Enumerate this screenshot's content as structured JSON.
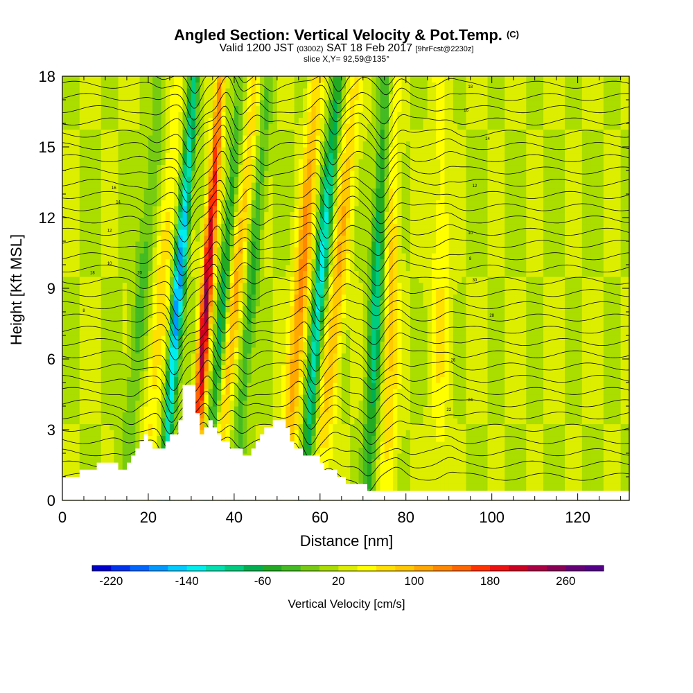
{
  "header": {
    "title": "Angled Section: Vertical Velocity & Pot.Temp.",
    "title_unit": "(C)",
    "valid_prefix": "Valid 1200 JST",
    "valid_utc": "(0300Z)",
    "valid_date": "SAT 18 Feb 2017",
    "forecast": "[9hrFcst@2230z]",
    "slice": "slice X,Y= 92,59@135°"
  },
  "chart_data": {
    "type": "heatmap",
    "title": "Angled Section: Vertical Velocity & Pot.Temp. (C)",
    "xlabel": "Distance [nm]",
    "ylabel": "Height [Kft MSL]",
    "xlim": [
      0,
      132
    ],
    "ylim": [
      0,
      18
    ],
    "x_ticks": [
      0,
      20,
      40,
      60,
      80,
      100,
      120
    ],
    "y_ticks": [
      0,
      3,
      6,
      9,
      12,
      15,
      18
    ],
    "colorbar": {
      "label": "Vertical Velocity [cm/s]",
      "tick_labels": [
        "-220",
        "-140",
        "-60",
        "20",
        "100",
        "180",
        "260"
      ],
      "tick_values": [
        -220,
        -140,
        -60,
        20,
        100,
        180,
        260
      ],
      "range": [
        -240,
        300
      ],
      "colors": [
        "#0000cc",
        "#0033ee",
        "#0066ff",
        "#0099ff",
        "#00ccff",
        "#00eeee",
        "#00e0b0",
        "#00cc80",
        "#00b050",
        "#22aa22",
        "#44bb22",
        "#77cc11",
        "#aadd00",
        "#ddee00",
        "#ffff00",
        "#ffe000",
        "#ffc800",
        "#ffa800",
        "#ff8800",
        "#ff6600",
        "#ff3300",
        "#ee1111",
        "#cc0022",
        "#aa0044",
        "#880055",
        "#660077",
        "#550088"
      ]
    },
    "updraft_bands": [
      {
        "x_base": 19,
        "amp": 60,
        "width": 1.8,
        "lean": 0.45
      },
      {
        "x_base": 30.5,
        "amp": 220,
        "width": 1.2,
        "lean": 0.35
      },
      {
        "x_base": 36,
        "amp": 90,
        "width": 1.5,
        "lean": 0.5
      },
      {
        "x_base": 52,
        "amp": 110,
        "width": 1.8,
        "lean": 0.4
      },
      {
        "x_base": 60,
        "amp": 80,
        "width": 2.0,
        "lean": 0.45
      },
      {
        "x_base": 76,
        "amp": 70,
        "width": 1.8,
        "lean": 0.05
      },
      {
        "x_base": 88,
        "amp": 40,
        "width": 2.2,
        "lean": 0.0
      }
    ],
    "downdraft_bands": [
      {
        "x_base": 23.5,
        "amp": -200,
        "width": 1.3,
        "lean": 0.4
      },
      {
        "x_base": 33.5,
        "amp": -90,
        "width": 1.3,
        "lean": 0.45
      },
      {
        "x_base": 40,
        "amp": -70,
        "width": 1.5,
        "lean": 0.45
      },
      {
        "x_base": 56,
        "amp": -150,
        "width": 1.5,
        "lean": 0.45
      },
      {
        "x_base": 71,
        "amp": -120,
        "width": 1.6,
        "lean": 0.25
      },
      {
        "x_base": 14,
        "amp": -50,
        "width": 2.0,
        "lean": 0.5
      }
    ],
    "terrain": [
      [
        0,
        1.0
      ],
      [
        4,
        1.0
      ],
      [
        4,
        1.3
      ],
      [
        8,
        1.3
      ],
      [
        8,
        1.6
      ],
      [
        13,
        1.6
      ],
      [
        13,
        1.3
      ],
      [
        15,
        1.3
      ],
      [
        15,
        1.6
      ],
      [
        16,
        1.6
      ],
      [
        16,
        1.9
      ],
      [
        17,
        1.9
      ],
      [
        17,
        2.2
      ],
      [
        18,
        2.2
      ],
      [
        18,
        2.5
      ],
      [
        19,
        2.5
      ],
      [
        19,
        2.8
      ],
      [
        20,
        2.8
      ],
      [
        20,
        2.5
      ],
      [
        21,
        2.5
      ],
      [
        21,
        2.2
      ],
      [
        24,
        2.2
      ],
      [
        24,
        2.5
      ],
      [
        25,
        2.5
      ],
      [
        25,
        2.8
      ],
      [
        27,
        2.8
      ],
      [
        27,
        3.4
      ],
      [
        28,
        3.4
      ],
      [
        28,
        4.9
      ],
      [
        31,
        4.9
      ],
      [
        31,
        3.7
      ],
      [
        32,
        3.7
      ],
      [
        32,
        2.8
      ],
      [
        33,
        2.8
      ],
      [
        33,
        3.1
      ],
      [
        34,
        3.1
      ],
      [
        34,
        3.4
      ],
      [
        35,
        3.4
      ],
      [
        35,
        3.1
      ],
      [
        36,
        3.1
      ],
      [
        36,
        2.8
      ],
      [
        37,
        2.8
      ],
      [
        37,
        2.5
      ],
      [
        39,
        2.5
      ],
      [
        39,
        2.2
      ],
      [
        42,
        2.2
      ],
      [
        42,
        1.9
      ],
      [
        44,
        1.9
      ],
      [
        44,
        2.2
      ],
      [
        45,
        2.2
      ],
      [
        45,
        2.5
      ],
      [
        46,
        2.5
      ],
      [
        46,
        2.8
      ],
      [
        47,
        2.8
      ],
      [
        47,
        3.1
      ],
      [
        49,
        3.1
      ],
      [
        49,
        3.4
      ],
      [
        52,
        3.4
      ],
      [
        52,
        3.1
      ],
      [
        53,
        3.1
      ],
      [
        53,
        2.5
      ],
      [
        54,
        2.5
      ],
      [
        54,
        2.2
      ],
      [
        56,
        2.2
      ],
      [
        56,
        1.9
      ],
      [
        60,
        1.9
      ],
      [
        60,
        1.6
      ],
      [
        61,
        1.6
      ],
      [
        61,
        1.3
      ],
      [
        64,
        1.3
      ],
      [
        64,
        1.0
      ],
      [
        66,
        1.0
      ],
      [
        66,
        0.7
      ],
      [
        71,
        0.7
      ],
      [
        71,
        0.4
      ],
      [
        132,
        0.4
      ],
      [
        132,
        0
      ]
    ],
    "isotherm_labels": [
      "8",
      "10",
      "12",
      "14",
      "16",
      "18",
      "20",
      "22",
      "24",
      "26",
      "28",
      "30"
    ]
  }
}
